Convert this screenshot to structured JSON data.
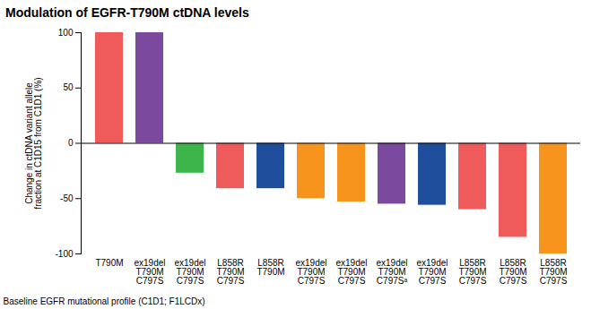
{
  "chart_data": {
    "type": "bar",
    "title": "Modulation of EGFR-T790M ctDNA levels",
    "y_label": "Change in ctDNA variant allele\nfraction at C1D15 from C1D1 (%)",
    "x_label": "Baseline EGFR mutational profile (C1D1; F1LCDx)",
    "categories": [
      "T790M",
      "ex19del\nT790M\nC797S",
      "ex19del\nT790M\nC797S",
      "L858R\nT790M\nC797S",
      "L858R\nT790M",
      "ex19del\nT790M\nC797S",
      "ex19del\nT790M\nC797S",
      "ex19del\nT790M\nC797Sᵃ",
      "ex19del\nT790M\nC797S",
      "L858R\nT790M\nC797S",
      "L858R\nT790M\nC797S",
      "L858R\nT790M\nC797S"
    ],
    "values": [
      100,
      100,
      -27,
      -41,
      -41,
      -50,
      -53,
      -55,
      -56,
      -60,
      -85,
      -100
    ],
    "colors": [
      "#ef5a5a",
      "#7b4a9e",
      "#3db54a",
      "#ef5a5a",
      "#1f4e9c",
      "#f7941d",
      "#f7941d",
      "#7b4a9e",
      "#1f4e9c",
      "#ef5a5a",
      "#ef5a5a",
      "#f7941d"
    ],
    "ylim": [
      -100,
      100
    ],
    "yticks": [
      -100,
      -50,
      0,
      50,
      100
    ],
    "grid": false
  }
}
